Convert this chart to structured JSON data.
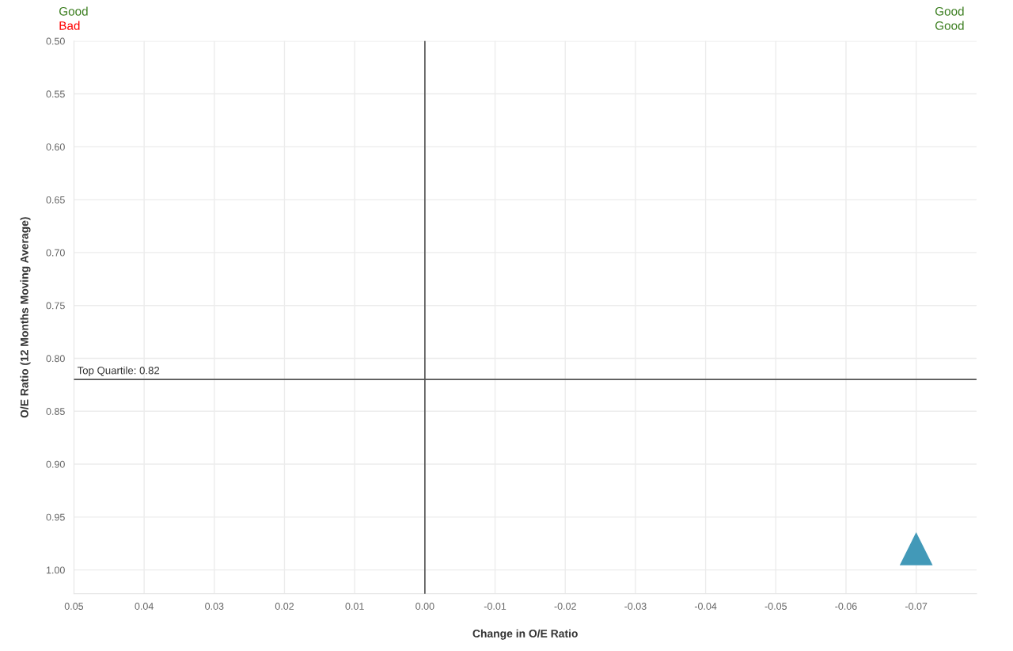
{
  "chart_data": {
    "type": "scatter",
    "xlabel": "Change in O/E Ratio",
    "ylabel": "O/E Ratio (12 Months Moving Average)",
    "x": [
      -0.07
    ],
    "series": [
      {
        "color": "#4299b8",
        "values": [
          0.98
        ]
      }
    ],
    "marker": "triangle",
    "xlim": [
      0.05,
      -0.0786
    ],
    "ylim": [
      1.0225,
      0.5
    ],
    "xticks": [
      {
        "value": 0.05,
        "label": "0.05"
      },
      {
        "value": 0.04,
        "label": "0.04"
      },
      {
        "value": 0.03,
        "label": "0.03"
      },
      {
        "value": 0.02,
        "label": "0.02"
      },
      {
        "value": 0.01,
        "label": "0.01"
      },
      {
        "value": 0.0,
        "label": "0.00"
      },
      {
        "value": -0.01,
        "label": "-0.01"
      },
      {
        "value": -0.02,
        "label": "-0.02"
      },
      {
        "value": -0.03,
        "label": "-0.03"
      },
      {
        "value": -0.04,
        "label": "-0.04"
      },
      {
        "value": -0.05,
        "label": "-0.05"
      },
      {
        "value": -0.06,
        "label": "-0.06"
      },
      {
        "value": -0.07,
        "label": "-0.07"
      }
    ],
    "yticks": [
      {
        "value": 0.5,
        "label": "0.50"
      },
      {
        "value": 0.55,
        "label": "0.55"
      },
      {
        "value": 0.6,
        "label": "0.60"
      },
      {
        "value": 0.65,
        "label": "0.65"
      },
      {
        "value": 0.7,
        "label": "0.70"
      },
      {
        "value": 0.75,
        "label": "0.75"
      },
      {
        "value": 0.8,
        "label": "0.80"
      },
      {
        "value": 0.85,
        "label": "0.85"
      },
      {
        "value": 0.9,
        "label": "0.90"
      },
      {
        "value": 0.95,
        "label": "0.95"
      },
      {
        "value": 1.0,
        "label": "1.00"
      }
    ],
    "grid": true,
    "ref_lines": [
      {
        "axis": "x",
        "value": 0.0,
        "color": "#555555"
      },
      {
        "axis": "y",
        "value": 0.82,
        "label": "Top Quartile: 0.82",
        "color": "#555555"
      }
    ],
    "annotations": [
      "Good",
      "Bad",
      "Good",
      "Good"
    ]
  }
}
